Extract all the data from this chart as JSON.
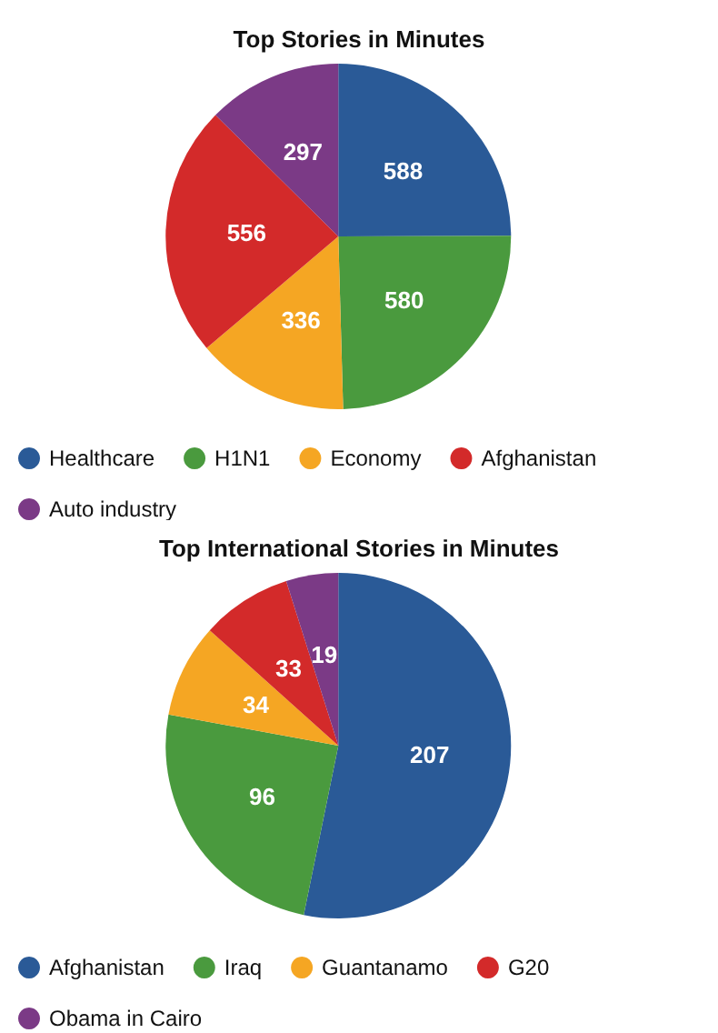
{
  "chart_data": [
    {
      "type": "pie",
      "title": "Top Stories in Minutes",
      "categories": [
        "Healthcare",
        "H1N1",
        "Economy",
        "Afghanistan",
        "Auto industry"
      ],
      "values": [
        588,
        580,
        336,
        556,
        297
      ],
      "colors": [
        "#2a5a97",
        "#4a9a3e",
        "#f5a623",
        "#d32a2a",
        "#7b3a86"
      ],
      "data_labels": true,
      "legend": "bottom"
    },
    {
      "type": "pie",
      "title": "Top International Stories in Minutes",
      "categories": [
        "Afghanistan",
        "Iraq",
        "Guantanamo",
        "G20",
        "Obama in Cairo"
      ],
      "values": [
        207,
        96,
        34,
        33,
        19
      ],
      "colors": [
        "#2a5a97",
        "#4a9a3e",
        "#f5a623",
        "#d32a2a",
        "#7b3a86"
      ],
      "data_labels": true,
      "legend": "bottom"
    }
  ]
}
